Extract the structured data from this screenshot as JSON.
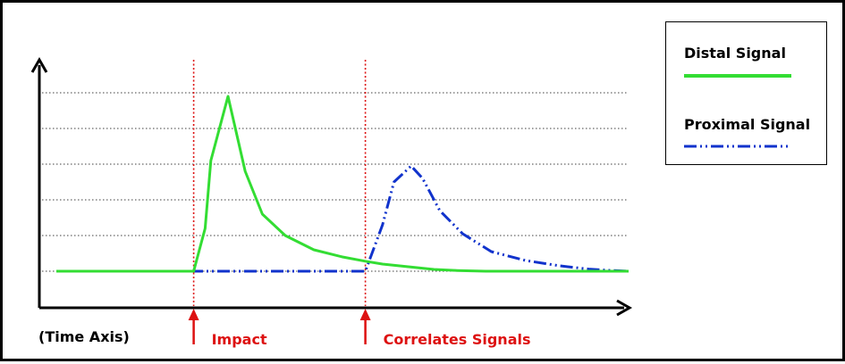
{
  "chart_data": {
    "type": "line",
    "xlabel": "(Time Axis)",
    "xlim": [
      0,
      100
    ],
    "ylim": [
      0,
      10
    ],
    "gridlines_y": [
      1,
      2,
      3,
      4,
      5,
      6
    ],
    "baseline": 1,
    "series": [
      {
        "name": "Distal Signal",
        "color": "#33dd33",
        "style": "solid",
        "points": [
          [
            0,
            1
          ],
          [
            24,
            1
          ],
          [
            26,
            2.2
          ],
          [
            27,
            4.1
          ],
          [
            30,
            5.9
          ],
          [
            33,
            3.8
          ],
          [
            36,
            2.6
          ],
          [
            40,
            2.0
          ],
          [
            45,
            1.6
          ],
          [
            50,
            1.4
          ],
          [
            54,
            1.28
          ],
          [
            57,
            1.2
          ],
          [
            60,
            1.15
          ],
          [
            63,
            1.1
          ],
          [
            66,
            1.05
          ],
          [
            70,
            1.02
          ],
          [
            75,
            1.0
          ],
          [
            100,
            1.0
          ]
        ]
      },
      {
        "name": "Proximal Signal",
        "color": "#1133cc",
        "style": "dash-dot-dot",
        "points": [
          [
            0,
            1
          ],
          [
            54,
            1
          ],
          [
            57,
            2.3
          ],
          [
            59,
            3.5
          ],
          [
            62,
            3.95
          ],
          [
            64,
            3.6
          ],
          [
            67,
            2.7
          ],
          [
            71,
            2.05
          ],
          [
            76,
            1.55
          ],
          [
            82,
            1.3
          ],
          [
            88,
            1.15
          ],
          [
            93,
            1.06
          ],
          [
            97,
            1.02
          ],
          [
            100,
            1.0
          ]
        ]
      }
    ],
    "markers": [
      {
        "x": 24,
        "label": "Impact"
      },
      {
        "x": 54,
        "label": "Correlates Signals"
      }
    ],
    "marker_color": "#dd1111",
    "legend_position": "top-right"
  }
}
